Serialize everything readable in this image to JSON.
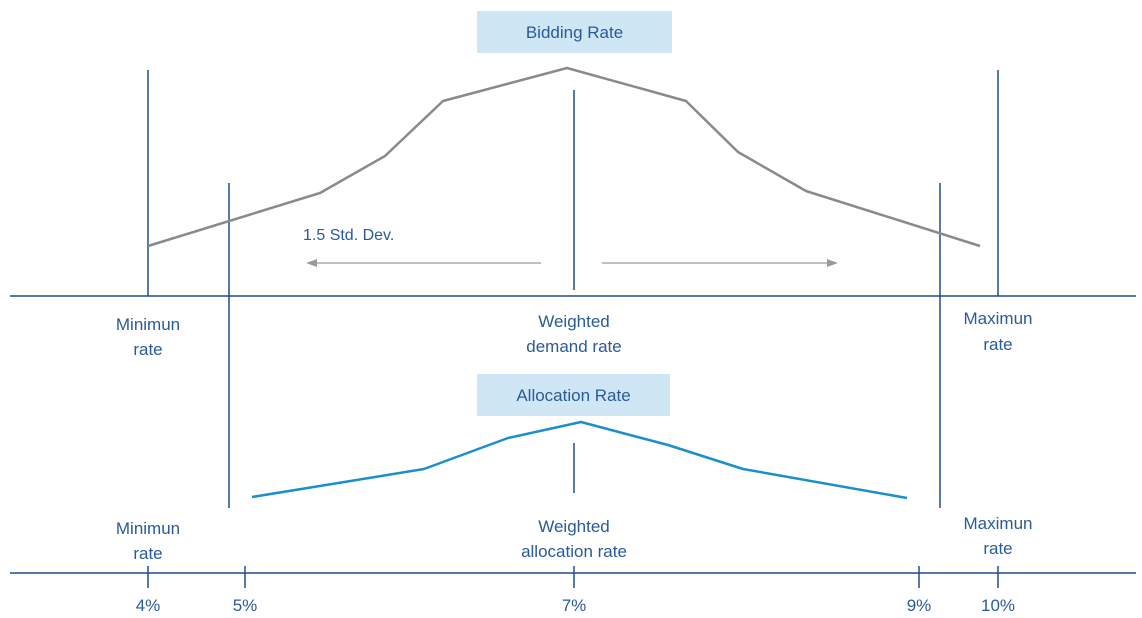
{
  "colors": {
    "axis": "#1f4e8c",
    "label": "#2a5a99",
    "bidding_curve": "#8a8a8a",
    "allocation_curve": "#1a8fcc",
    "title_box": "#cfe6f5",
    "title_text": "#2a5a99",
    "arrow": "#9a9a9a"
  },
  "bidding": {
    "title": "Bidding Rate",
    "std_dev_label": "1.5 Std. Dev.",
    "min_label": [
      "Minimun",
      "rate"
    ],
    "center_label": [
      "Weighted",
      "demand rate"
    ],
    "max_label": [
      "Maximun",
      "rate"
    ]
  },
  "allocation": {
    "title": "Allocation Rate",
    "min_label": [
      "Minimun",
      "rate"
    ],
    "center_label": [
      "Weighted",
      "allocation rate"
    ],
    "max_label": [
      "Maximun",
      "rate"
    ]
  },
  "axis_ticks": [
    "4%",
    "5%",
    "7%",
    "9%",
    "10%"
  ]
}
